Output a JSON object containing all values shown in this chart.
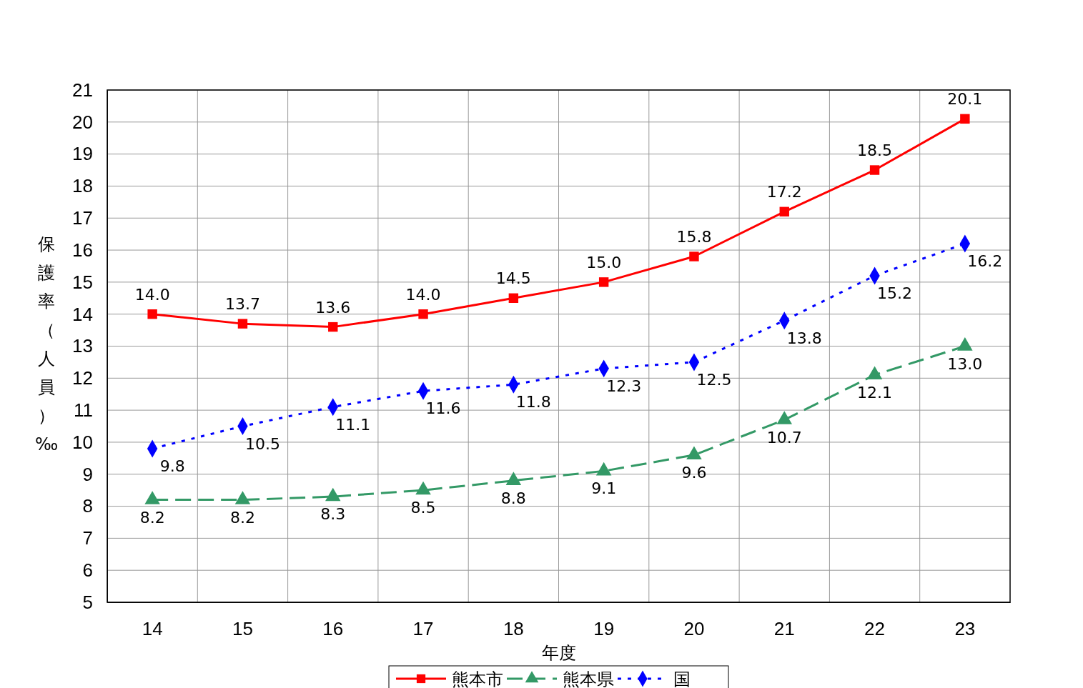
{
  "chart_data": {
    "type": "line",
    "xlabel": "年度",
    "ylabel": "保護率（人員）‰",
    "categories": [
      "14",
      "15",
      "16",
      "17",
      "18",
      "19",
      "20",
      "21",
      "22",
      "23"
    ],
    "ylim": [
      5,
      21
    ],
    "yticks": [
      5,
      6,
      7,
      8,
      9,
      10,
      11,
      12,
      13,
      14,
      15,
      16,
      17,
      18,
      19,
      20,
      21
    ],
    "grid": true,
    "legend": "bottom",
    "series": [
      {
        "name": "熊本市",
        "color": "#ff0000",
        "marker": "square",
        "line_style": "solid",
        "values": [
          14.0,
          13.7,
          13.6,
          14.0,
          14.5,
          15.0,
          15.8,
          17.2,
          18.5,
          20.1
        ],
        "value_labels": [
          "14.0",
          "13.7",
          "13.6",
          "14.0",
          "14.5",
          "15.0",
          "15.8",
          "17.2",
          "18.5",
          "20.1"
        ]
      },
      {
        "name": "熊本県",
        "color": "#339966",
        "marker": "triangle",
        "line_style": "dashed",
        "values": [
          8.2,
          8.2,
          8.3,
          8.5,
          8.8,
          9.1,
          9.6,
          10.7,
          12.1,
          13.0
        ],
        "value_labels": [
          "8.2",
          "8.2",
          "8.3",
          "8.5",
          "8.8",
          "9.1",
          "9.6",
          "10.7",
          "12.1",
          "13.0"
        ]
      },
      {
        "name": "国",
        "color": "#0000ff",
        "marker": "diamond",
        "line_style": "dotted",
        "values": [
          9.8,
          10.5,
          11.1,
          11.6,
          11.8,
          12.3,
          12.5,
          13.8,
          15.2,
          16.2
        ],
        "value_labels": [
          "9.8",
          "10.5",
          "11.1",
          "11.6",
          "11.8",
          "12.3",
          "12.5",
          "13.8",
          "15.2",
          "16.2"
        ]
      }
    ]
  }
}
